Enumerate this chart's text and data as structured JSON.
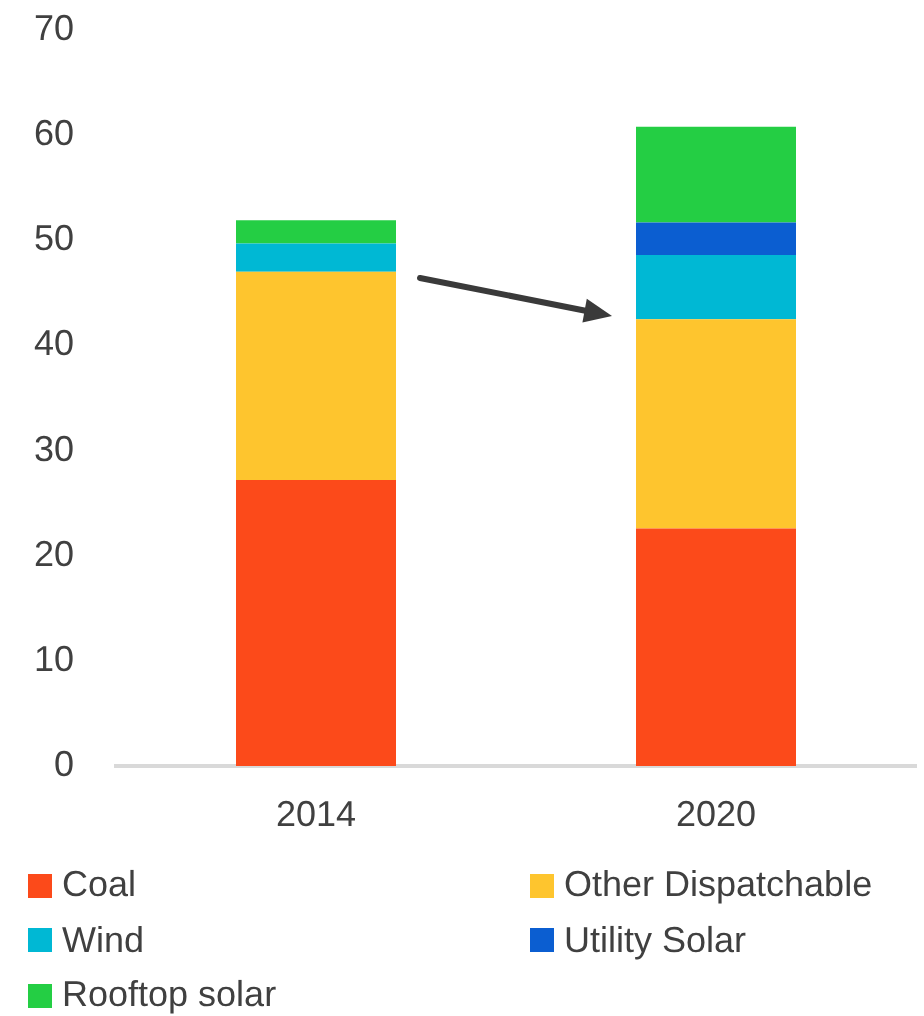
{
  "chart_data": {
    "type": "bar",
    "categories": [
      "2014",
      "2020"
    ],
    "stacked": true,
    "ylim": [
      0,
      70
    ],
    "yticks": [
      0,
      10,
      20,
      30,
      40,
      50,
      60,
      70
    ],
    "grid": false,
    "legend": "bottom",
    "series": [
      {
        "name": "Coal",
        "color": "#fc4a1a",
        "values": [
          27.2,
          22.6
        ]
      },
      {
        "name": "Other Dispatchable",
        "color": "#fec52e",
        "values": [
          19.8,
          19.9
        ]
      },
      {
        "name": "Wind",
        "color": "#00b8d4",
        "values": [
          2.7,
          6.1
        ]
      },
      {
        "name": "Utility Solar",
        "color": "#0b5ed1",
        "values": [
          0,
          3.1
        ]
      },
      {
        "name": "Rooftop solar",
        "color": "#24ce44",
        "values": [
          2.2,
          9.1
        ]
      }
    ]
  }
}
